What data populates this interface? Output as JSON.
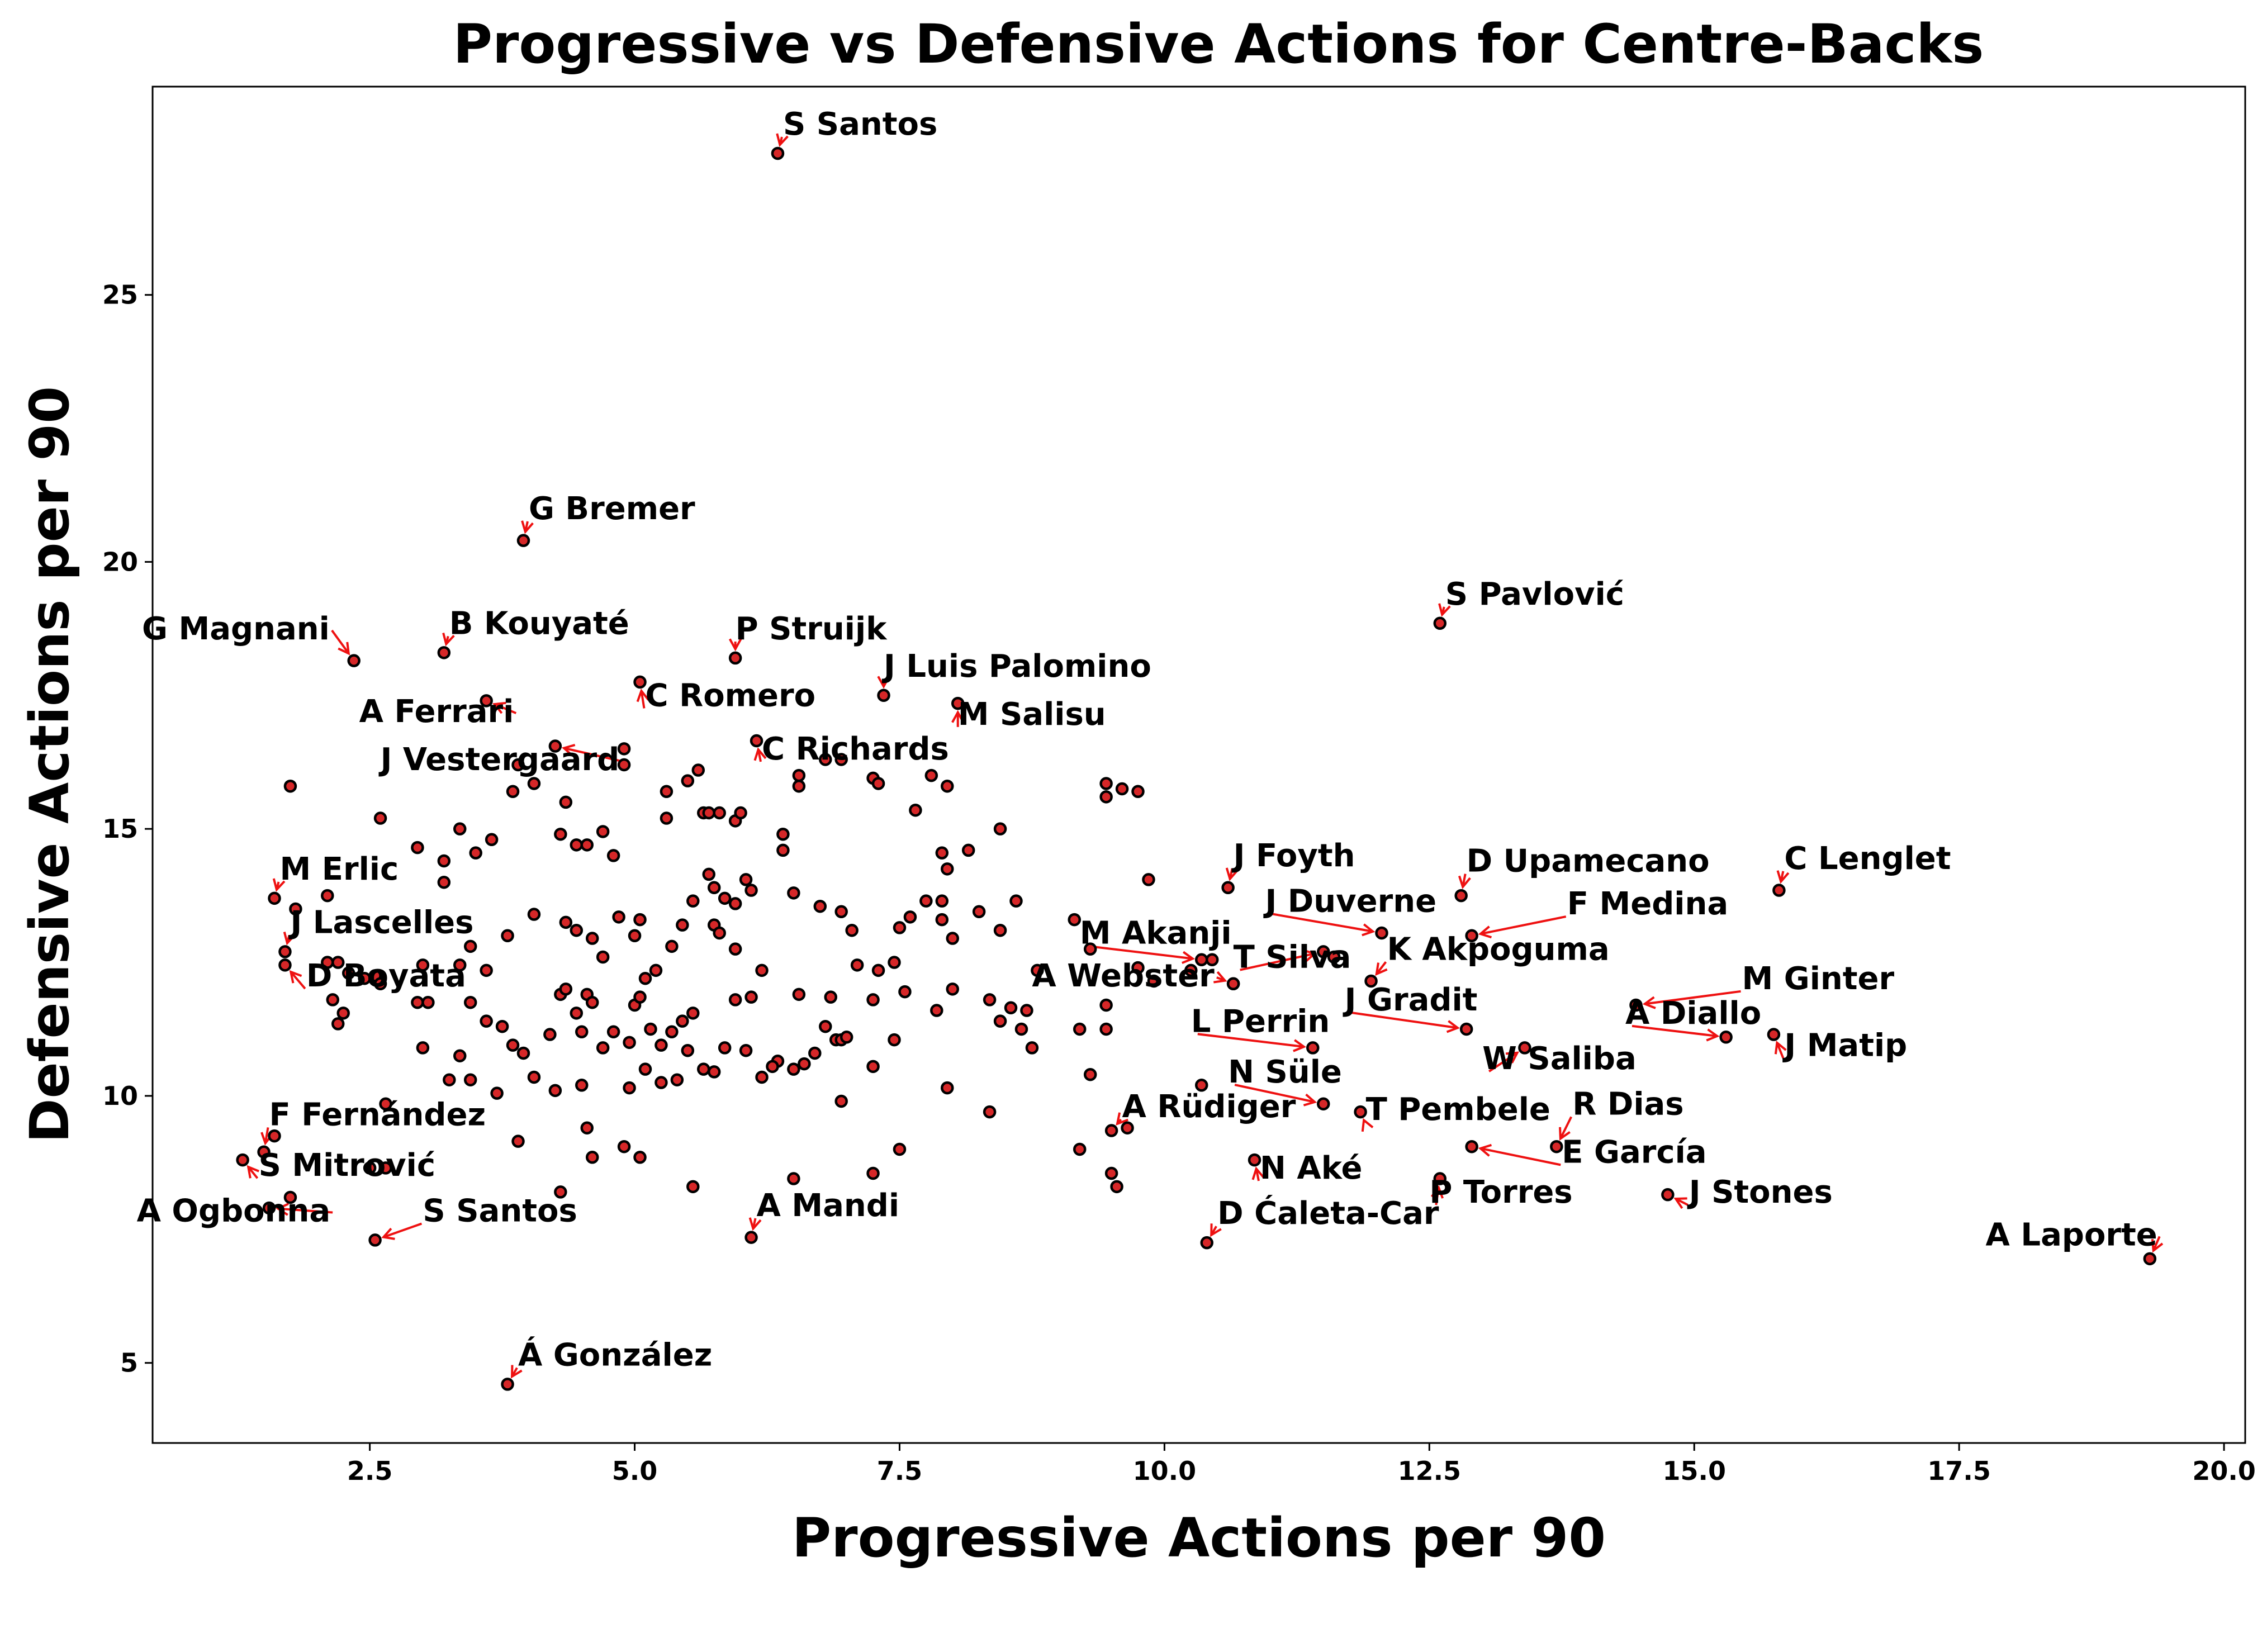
{
  "chart_data": {
    "type": "scatter",
    "title": "Progressive vs Defensive Actions for Centre-Backs",
    "xlabel": "Progressive Actions per 90",
    "ylabel": "Defensive Actions per 90",
    "xlim": [
      0.45,
      20.2
    ],
    "ylim": [
      3.5,
      28.9
    ],
    "xticks": [
      2.5,
      5.0,
      7.5,
      10.0,
      12.5,
      15.0,
      17.5,
      20.0
    ],
    "xtick_labels": [
      "2.5",
      "5.0",
      "7.5",
      "10.0",
      "12.5",
      "15.0",
      "17.5",
      "20.0"
    ],
    "yticks": [
      5,
      10,
      15,
      20,
      25
    ],
    "ytick_labels": [
      "5",
      "10",
      "15",
      "20",
      "25"
    ],
    "grid": false,
    "marker_color": "#d62728",
    "marker_edge": "#000000",
    "arrow_color": "#ee1111",
    "labeled_points": [
      {
        "name": "S Santos",
        "x": 6.35,
        "y": 27.65,
        "lx": 6.4,
        "ly": 28.0
      },
      {
        "name": "G Bremer",
        "x": 3.95,
        "y": 20.4,
        "lx": 4.0,
        "ly": 20.8
      },
      {
        "name": "G Magnani",
        "x": 2.35,
        "y": 18.15,
        "lx": 0.35,
        "ly": 18.55
      },
      {
        "name": "B Kouyaté",
        "x": 3.2,
        "y": 18.3,
        "lx": 3.25,
        "ly": 18.65
      },
      {
        "name": "P Struijk",
        "x": 5.95,
        "y": 18.2,
        "lx": 5.95,
        "ly": 18.55
      },
      {
        "name": "S Pavlović",
        "x": 12.6,
        "y": 18.85,
        "lx": 12.65,
        "ly": 19.2
      },
      {
        "name": "J Luis Palomino",
        "x": 7.35,
        "y": 17.5,
        "lx": 7.35,
        "ly": 17.85
      },
      {
        "name": "M Salisu",
        "x": 8.05,
        "y": 17.35,
        "lx": 8.05,
        "ly": 16.95
      },
      {
        "name": "C Romero",
        "x": 5.05,
        "y": 17.75,
        "lx": 5.1,
        "ly": 17.3
      },
      {
        "name": "A Ferrari",
        "x": 3.6,
        "y": 17.4,
        "lx": 2.4,
        "ly": 17.0
      },
      {
        "name": "C Richards",
        "x": 6.15,
        "y": 16.65,
        "lx": 6.2,
        "ly": 16.3
      },
      {
        "name": "J Vestergaard",
        "x": 4.25,
        "y": 16.55,
        "lx": 2.6,
        "ly": 16.1
      },
      {
        "name": "J Foyth",
        "x": 10.6,
        "y": 13.9,
        "lx": 10.65,
        "ly": 14.3
      },
      {
        "name": "D Upamecano",
        "x": 12.8,
        "y": 13.75,
        "lx": 12.85,
        "ly": 14.2
      },
      {
        "name": "C Lenglet",
        "x": 15.8,
        "y": 13.85,
        "lx": 15.85,
        "ly": 14.25
      },
      {
        "name": "M Erlic",
        "x": 1.6,
        "y": 13.7,
        "lx": 1.65,
        "ly": 14.05
      },
      {
        "name": "J Duverne",
        "x": 12.05,
        "y": 13.05,
        "lx": 10.95,
        "ly": 13.45
      },
      {
        "name": "F Medina",
        "x": 12.9,
        "y": 13.0,
        "lx": 13.8,
        "ly": 13.4
      },
      {
        "name": "J Lascelles",
        "x": 1.7,
        "y": 12.7,
        "lx": 1.75,
        "ly": 13.05
      },
      {
        "name": "M Akanji",
        "x": 10.35,
        "y": 12.55,
        "lx": 9.2,
        "ly": 12.85
      },
      {
        "name": "K Akpoguma",
        "x": 11.95,
        "y": 12.15,
        "lx": 12.1,
        "ly": 12.55
      },
      {
        "name": "T Silva",
        "x": 11.5,
        "y": 12.7,
        "lx": 10.65,
        "ly": 12.4
      },
      {
        "name": "D Boyata",
        "x": 1.7,
        "y": 12.45,
        "lx": 1.9,
        "ly": 12.05
      },
      {
        "name": "A Webster",
        "x": 10.65,
        "y": 12.1,
        "lx": 8.75,
        "ly": 12.05
      },
      {
        "name": "M Ginter",
        "x": 14.45,
        "y": 11.7,
        "lx": 15.45,
        "ly": 12.0
      },
      {
        "name": "J Gradit",
        "x": 12.85,
        "y": 11.25,
        "lx": 11.7,
        "ly": 11.6
      },
      {
        "name": "A Diallo",
        "x": 15.3,
        "y": 11.1,
        "lx": 14.35,
        "ly": 11.35
      },
      {
        "name": "J Matip",
        "x": 15.75,
        "y": 11.15,
        "lx": 15.85,
        "ly": 10.75
      },
      {
        "name": "L Perrin",
        "x": 11.4,
        "y": 10.9,
        "lx": 10.25,
        "ly": 11.2
      },
      {
        "name": "W Saliba",
        "x": 13.4,
        "y": 10.9,
        "lx": 13.0,
        "ly": 10.5
      },
      {
        "name": "N Süle",
        "x": 11.5,
        "y": 9.85,
        "lx": 10.6,
        "ly": 10.25
      },
      {
        "name": "A Rüdiger",
        "x": 9.5,
        "y": 9.35,
        "lx": 9.6,
        "ly": 9.6
      },
      {
        "name": "T Pembele",
        "x": 11.85,
        "y": 9.7,
        "lx": 11.9,
        "ly": 9.55
      },
      {
        "name": "R Dias",
        "x": 13.7,
        "y": 9.05,
        "lx": 13.85,
        "ly": 9.65
      },
      {
        "name": "F Fernández",
        "x": 1.5,
        "y": 8.95,
        "lx": 1.55,
        "ly": 9.45
      },
      {
        "name": "E García",
        "x": 12.9,
        "y": 9.05,
        "lx": 13.75,
        "ly": 8.75
      },
      {
        "name": "S Mitrović",
        "x": 1.3,
        "y": 8.8,
        "lx": 1.45,
        "ly": 8.5
      },
      {
        "name": "N Aké",
        "x": 10.85,
        "y": 8.8,
        "lx": 10.9,
        "ly": 8.45
      },
      {
        "name": "P Torres",
        "x": 12.6,
        "y": 8.45,
        "lx": 12.5,
        "ly": 8.0
      },
      {
        "name": "J Stones",
        "x": 14.75,
        "y": 8.15,
        "lx": 14.95,
        "ly": 8.0
      },
      {
        "name": "A Ogbonna",
        "x": 1.55,
        "y": 7.9,
        "lx": 0.3,
        "ly": 7.65
      },
      {
        "name": "S Santos",
        "x": 2.55,
        "y": 7.3,
        "lx": 3.0,
        "ly": 7.65
      },
      {
        "name": "A Mandi",
        "x": 6.1,
        "y": 7.35,
        "lx": 6.15,
        "ly": 7.75
      },
      {
        "name": "D Ćaleta-Car",
        "x": 10.4,
        "y": 7.25,
        "lx": 10.5,
        "ly": 7.6
      },
      {
        "name": "A Laporte",
        "x": 19.3,
        "y": 6.95,
        "lx": 17.75,
        "ly": 7.2
      },
      {
        "name": "Á González",
        "x": 3.8,
        "y": 4.6,
        "lx": 3.9,
        "ly": 4.95
      }
    ],
    "other_points": [
      [
        1.75,
        15.8
      ],
      [
        2.6,
        15.2
      ],
      [
        2.95,
        14.65
      ],
      [
        3.2,
        14.4
      ],
      [
        3.2,
        14.0
      ],
      [
        3.35,
        15.0
      ],
      [
        3.5,
        14.55
      ],
      [
        3.65,
        14.8
      ],
      [
        3.85,
        15.7
      ],
      [
        3.9,
        16.2
      ],
      [
        4.05,
        15.85
      ],
      [
        4.3,
        14.9
      ],
      [
        4.35,
        15.5
      ],
      [
        4.45,
        14.7
      ],
      [
        4.55,
        14.7
      ],
      [
        4.7,
        14.95
      ],
      [
        4.8,
        14.5
      ],
      [
        4.9,
        16.5
      ],
      [
        4.9,
        16.2
      ],
      [
        5.3,
        15.2
      ],
      [
        5.3,
        15.7
      ],
      [
        5.5,
        15.9
      ],
      [
        5.6,
        16.1
      ],
      [
        5.65,
        15.3
      ],
      [
        5.7,
        15.3
      ],
      [
        5.8,
        15.3
      ],
      [
        5.95,
        15.15
      ],
      [
        6.0,
        15.3
      ],
      [
        6.4,
        14.9
      ],
      [
        6.4,
        14.6
      ],
      [
        6.55,
        16.0
      ],
      [
        6.55,
        15.8
      ],
      [
        6.8,
        16.3
      ],
      [
        6.95,
        16.3
      ],
      [
        7.25,
        15.95
      ],
      [
        7.3,
        15.85
      ],
      [
        7.65,
        15.35
      ],
      [
        7.8,
        16.0
      ],
      [
        7.95,
        15.8
      ],
      [
        7.9,
        14.55
      ],
      [
        7.95,
        14.25
      ],
      [
        8.15,
        14.6
      ],
      [
        8.45,
        15.0
      ],
      [
        9.45,
        15.85
      ],
      [
        9.45,
        15.6
      ],
      [
        9.6,
        15.75
      ],
      [
        9.75,
        15.7
      ],
      [
        9.85,
        14.05
      ],
      [
        1.8,
        13.5
      ],
      [
        2.1,
        13.75
      ],
      [
        3.0,
        12.45
      ],
      [
        3.35,
        12.45
      ],
      [
        3.45,
        12.8
      ],
      [
        3.6,
        12.35
      ],
      [
        3.8,
        13.0
      ],
      [
        4.05,
        13.4
      ],
      [
        4.35,
        13.25
      ],
      [
        4.45,
        13.1
      ],
      [
        4.6,
        12.95
      ],
      [
        4.7,
        12.6
      ],
      [
        4.85,
        13.35
      ],
      [
        5.0,
        13.0
      ],
      [
        5.05,
        13.3
      ],
      [
        5.1,
        12.2
      ],
      [
        5.2,
        12.35
      ],
      [
        5.35,
        12.8
      ],
      [
        5.45,
        13.2
      ],
      [
        5.55,
        13.65
      ],
      [
        5.7,
        14.15
      ],
      [
        5.75,
        13.9
      ],
      [
        5.85,
        13.7
      ],
      [
        5.95,
        13.6
      ],
      [
        6.05,
        14.05
      ],
      [
        6.1,
        13.85
      ],
      [
        5.75,
        13.2
      ],
      [
        5.8,
        13.05
      ],
      [
        5.95,
        12.75
      ],
      [
        6.2,
        12.35
      ],
      [
        6.5,
        13.8
      ],
      [
        6.75,
        13.55
      ],
      [
        6.95,
        13.45
      ],
      [
        7.05,
        13.1
      ],
      [
        7.1,
        12.45
      ],
      [
        7.3,
        12.35
      ],
      [
        7.45,
        12.5
      ],
      [
        7.5,
        13.15
      ],
      [
        7.6,
        13.35
      ],
      [
        7.75,
        13.65
      ],
      [
        7.9,
        13.65
      ],
      [
        7.9,
        13.3
      ],
      [
        8.0,
        12.95
      ],
      [
        8.25,
        13.45
      ],
      [
        8.45,
        13.1
      ],
      [
        8.6,
        13.65
      ],
      [
        8.55,
        11.65
      ],
      [
        8.8,
        12.35
      ],
      [
        9.15,
        13.3
      ],
      [
        9.3,
        12.75
      ],
      [
        9.45,
        11.7
      ],
      [
        9.75,
        12.4
      ],
      [
        9.9,
        12.15
      ],
      [
        10.25,
        12.35
      ],
      [
        10.45,
        12.55
      ],
      [
        2.1,
        12.5
      ],
      [
        2.2,
        12.5
      ],
      [
        2.3,
        12.3
      ],
      [
        2.45,
        12.2
      ],
      [
        2.55,
        12.25
      ],
      [
        2.6,
        12.1
      ],
      [
        2.15,
        11.8
      ],
      [
        2.25,
        11.55
      ],
      [
        2.2,
        11.35
      ],
      [
        2.95,
        11.75
      ],
      [
        3.05,
        11.75
      ],
      [
        3.45,
        11.75
      ],
      [
        3.6,
        11.4
      ],
      [
        3.75,
        11.3
      ],
      [
        3.85,
        10.95
      ],
      [
        3.95,
        10.8
      ],
      [
        4.2,
        11.15
      ],
      [
        4.3,
        11.9
      ],
      [
        4.35,
        12.0
      ],
      [
        4.45,
        11.55
      ],
      [
        4.5,
        11.2
      ],
      [
        4.55,
        11.9
      ],
      [
        4.6,
        11.75
      ],
      [
        4.7,
        10.9
      ],
      [
        4.8,
        11.2
      ],
      [
        4.95,
        11.0
      ],
      [
        5.0,
        11.7
      ],
      [
        5.05,
        11.85
      ],
      [
        5.15,
        11.25
      ],
      [
        5.25,
        10.95
      ],
      [
        5.35,
        11.2
      ],
      [
        5.45,
        11.4
      ],
      [
        5.55,
        11.55
      ],
      [
        5.75,
        10.45
      ],
      [
        5.95,
        11.8
      ],
      [
        6.1,
        11.85
      ],
      [
        6.2,
        10.35
      ],
      [
        6.35,
        10.65
      ],
      [
        6.5,
        10.5
      ],
      [
        6.55,
        11.9
      ],
      [
        6.8,
        11.3
      ],
      [
        6.85,
        11.85
      ],
      [
        6.9,
        11.05
      ],
      [
        6.95,
        11.05
      ],
      [
        7.0,
        11.1
      ],
      [
        7.25,
        11.8
      ],
      [
        7.45,
        11.05
      ],
      [
        7.55,
        11.95
      ],
      [
        7.85,
        11.6
      ],
      [
        8.0,
        12.0
      ],
      [
        8.35,
        11.8
      ],
      [
        8.45,
        11.4
      ],
      [
        8.65,
        11.25
      ],
      [
        8.7,
        11.6
      ],
      [
        8.75,
        10.9
      ],
      [
        9.2,
        11.25
      ],
      [
        9.45,
        11.25
      ],
      [
        9.3,
        10.4
      ],
      [
        3.0,
        10.9
      ],
      [
        3.25,
        10.3
      ],
      [
        3.35,
        10.75
      ],
      [
        3.45,
        10.3
      ],
      [
        3.7,
        10.05
      ],
      [
        4.05,
        10.35
      ],
      [
        4.25,
        10.1
      ],
      [
        4.5,
        10.2
      ],
      [
        4.95,
        10.15
      ],
      [
        5.1,
        10.5
      ],
      [
        5.25,
        10.25
      ],
      [
        5.4,
        10.3
      ],
      [
        5.5,
        10.85
      ],
      [
        5.65,
        10.5
      ],
      [
        5.85,
        10.9
      ],
      [
        6.05,
        10.85
      ],
      [
        6.3,
        10.55
      ],
      [
        6.6,
        10.6
      ],
      [
        6.7,
        10.8
      ],
      [
        6.95,
        9.9
      ],
      [
        7.25,
        10.55
      ],
      [
        7.95,
        10.15
      ],
      [
        8.35,
        9.7
      ],
      [
        9.65,
        9.4
      ],
      [
        10.35,
        10.2
      ],
      [
        2.65,
        9.85
      ],
      [
        2.65,
        8.65
      ],
      [
        3.9,
        9.15
      ],
      [
        4.3,
        8.2
      ],
      [
        4.55,
        9.4
      ],
      [
        4.6,
        8.85
      ],
      [
        4.9,
        9.05
      ],
      [
        5.05,
        8.85
      ],
      [
        5.55,
        8.3
      ],
      [
        6.5,
        8.45
      ],
      [
        7.25,
        8.55
      ],
      [
        7.5,
        9.0
      ],
      [
        9.2,
        9.0
      ],
      [
        9.5,
        8.55
      ],
      [
        9.55,
        8.3
      ],
      [
        1.6,
        9.25
      ],
      [
        1.75,
        8.1
      ],
      [
        2.5,
        8.65
      ],
      [
        10.65,
        12.1
      ],
      [
        11.6,
        12.6
      ]
    ]
  }
}
